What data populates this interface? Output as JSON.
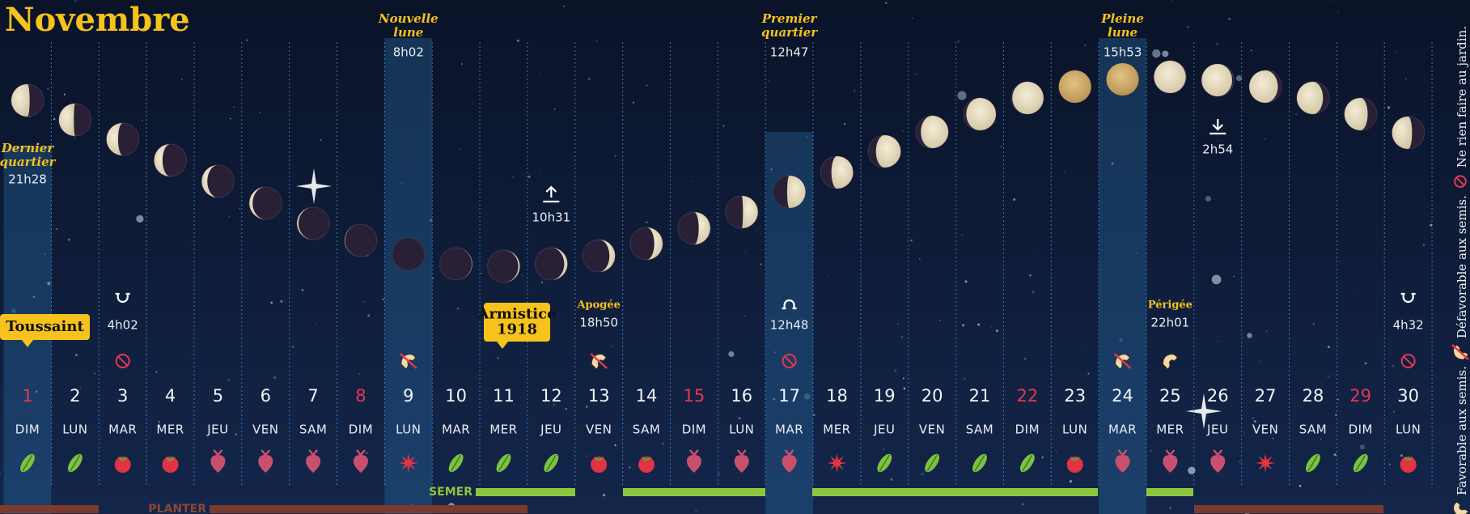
{
  "title": "Novembre",
  "days": [
    {
      "number": 1,
      "weekday": "DIM",
      "color": "#e8364f"
    },
    {
      "number": 2,
      "weekday": "LUN"
    },
    {
      "number": 3,
      "weekday": "MAR"
    },
    {
      "number": 4,
      "weekday": "MER"
    },
    {
      "number": 5,
      "weekday": "JEU"
    },
    {
      "number": 6,
      "weekday": "VEN"
    },
    {
      "number": 7,
      "weekday": "SAM"
    },
    {
      "number": 8,
      "weekday": "DIM",
      "color": "#e8364f"
    },
    {
      "number": 9,
      "weekday": "LUN"
    },
    {
      "number": 10,
      "weekday": "MAR"
    },
    {
      "number": 11,
      "weekday": "MER"
    },
    {
      "number": 12,
      "weekday": "JEU"
    },
    {
      "number": 13,
      "weekday": "VEN"
    },
    {
      "number": 14,
      "weekday": "SAM"
    },
    {
      "number": 15,
      "weekday": "DIM",
      "color": "#e8364f"
    },
    {
      "number": 16,
      "weekday": "LUN"
    },
    {
      "number": 17,
      "weekday": "MAR"
    },
    {
      "number": 18,
      "weekday": "MER"
    },
    {
      "number": 19,
      "weekday": "JEU"
    },
    {
      "number": 20,
      "weekday": "VEN"
    },
    {
      "number": 21,
      "weekday": "SAM"
    },
    {
      "number": 22,
      "weekday": "DIM",
      "color": "#e8364f"
    },
    {
      "number": 23,
      "weekday": "LUN"
    },
    {
      "number": 24,
      "weekday": "MAR"
    },
    {
      "number": 25,
      "weekday": "MER"
    },
    {
      "number": 26,
      "weekday": "JEU"
    },
    {
      "number": 27,
      "weekday": "VEN"
    },
    {
      "number": 28,
      "weekday": "SAM"
    },
    {
      "number": 29,
      "weekday": "DIM",
      "color": "#e8364f"
    },
    {
      "number": 30,
      "weekday": "LUN"
    }
  ],
  "moon_phases": [
    {
      "name_lines": [
        "Dernier",
        "quartier"
      ],
      "time": "21h28"
    },
    {
      "name_lines": [
        "Nouvelle",
        "lune"
      ],
      "time": "8h02"
    },
    {
      "name_lines": [
        "Premier",
        "quartier"
      ],
      "time": "12h47"
    },
    {
      "name_lines": [
        "Pleine",
        "lune"
      ],
      "time": "15h53"
    }
  ],
  "nodes": [
    {
      "time": "4h02"
    },
    {
      "time": "12h48"
    },
    {
      "time": "4h32"
    }
  ],
  "apsides": [
    {
      "label": "Apogée",
      "time": "18h50"
    },
    {
      "label": "Périgée",
      "time": "22h01"
    }
  ],
  "lunistices": [
    {
      "time": "10h31"
    },
    {
      "time": "2h54"
    }
  ],
  "holidays": [
    {
      "lines": [
        "Toussaint"
      ]
    },
    {
      "lines": [
        "Armistice",
        "1918"
      ]
    }
  ],
  "bar_labels": {
    "sow": "SEMER",
    "plant": "PLANTER"
  },
  "legend": [
    "Favorable aux semis.",
    "Défavorable aux semis.",
    "Ne rien faire au jardin."
  ]
}
